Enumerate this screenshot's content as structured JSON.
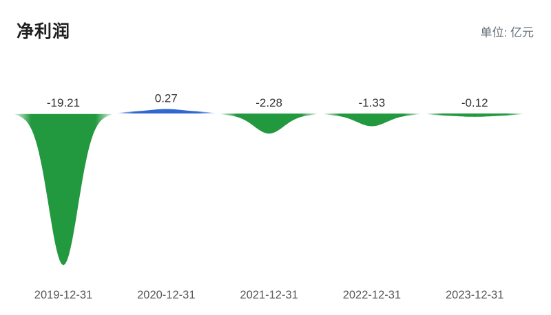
{
  "header": {
    "title": "净利润",
    "unit_label": "单位: 亿元"
  },
  "colors": {
    "negative_shape": "#23993F",
    "positive_shape": "#2F68D0",
    "value_label": "#333333",
    "axis_label": "#575757",
    "title": "#1f1f1f",
    "unit": "#64707a"
  },
  "chart_data": {
    "type": "area",
    "title": "净利润",
    "unit": "亿元",
    "categories": [
      "2019-12-31",
      "2020-12-31",
      "2021-12-31",
      "2022-12-31",
      "2023-12-31"
    ],
    "values": [
      -19.21,
      0.27,
      -2.28,
      -1.33,
      -0.12
    ],
    "value_labels": [
      "-19.21",
      "0.27",
      "-2.28",
      "-1.33",
      "-0.12"
    ],
    "baseline": 0,
    "ylim": [
      -20,
      1
    ],
    "grid": false,
    "legend": "none",
    "style_note": "droplet/funnel shaped area per point; negative values hang below baseline in green, positive bump above baseline in blue"
  }
}
